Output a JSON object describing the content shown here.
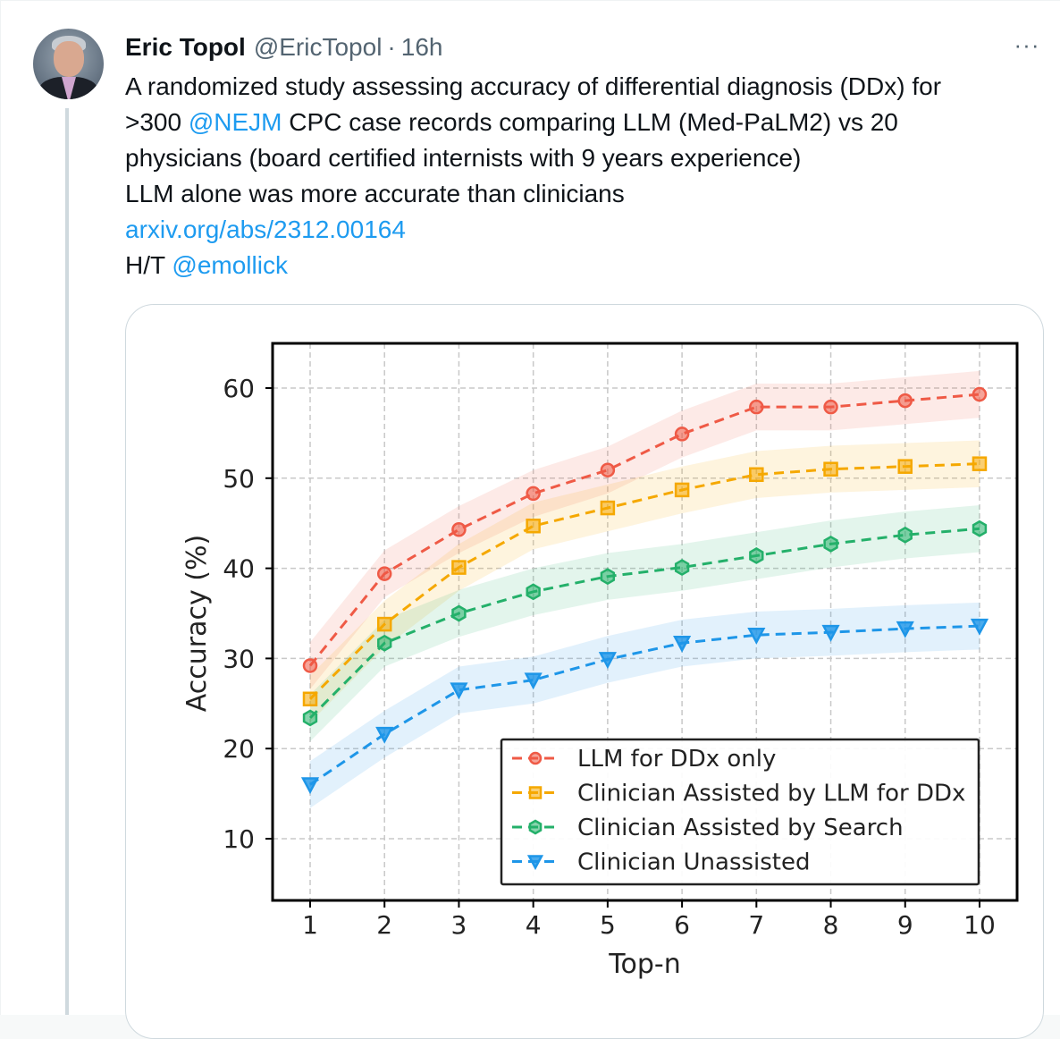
{
  "tweet": {
    "author_name": "Eric Topol",
    "author_handle": "@EricTopol",
    "separator": "·",
    "time": "16h",
    "more_label": "···",
    "text_line1": "A randomized study assessing accuracy of differential diagnosis (DDx) for",
    "text_line2_pre": ">300 ",
    "mention_nejm": "@NEJM",
    "text_line2_post": " CPC case records comparing LLM (Med-PaLM2) vs 20",
    "text_line3": "physicians (board certified internists with 9 years experience)",
    "text_line4": "LLM alone was more accurate than clinicians",
    "link_text": "arxiv.org/abs/2312.00164",
    "text_line6_pre": "H/T ",
    "mention_emollick": "@emollick"
  },
  "chart_data": {
    "type": "line",
    "xlabel": "Top-n",
    "ylabel": "Accuracy (%)",
    "x": [
      1,
      2,
      3,
      4,
      5,
      6,
      7,
      8,
      9,
      10
    ],
    "yticks": [
      10,
      20,
      30,
      40,
      50,
      60
    ],
    "ylim": [
      5,
      65
    ],
    "grid": true,
    "legend_placement": "lower-right",
    "series": [
      {
        "name": "LLM for DDx only",
        "color": "#ef5a46",
        "marker": "circle",
        "values": [
          29.2,
          39.4,
          44.3,
          48.3,
          50.9,
          54.9,
          57.9,
          57.9,
          58.6,
          59.3
        ]
      },
      {
        "name": "Clinician Assisted by LLM for DDx",
        "color": "#f5a800",
        "marker": "square",
        "values": [
          25.5,
          33.8,
          40.1,
          44.7,
          46.7,
          48.7,
          50.4,
          51.0,
          51.3,
          51.6
        ]
      },
      {
        "name": "Clinician Assisted by Search",
        "color": "#24b06a",
        "marker": "hexagon",
        "values": [
          23.4,
          31.7,
          35.0,
          37.4,
          39.1,
          40.1,
          41.4,
          42.7,
          43.7,
          44.4
        ]
      },
      {
        "name": "Clinician Unassisted",
        "color": "#1e96e8",
        "marker": "triangle-down",
        "values": [
          16.0,
          21.6,
          26.5,
          27.6,
          29.9,
          31.7,
          32.6,
          32.9,
          33.3,
          33.6
        ]
      }
    ]
  }
}
